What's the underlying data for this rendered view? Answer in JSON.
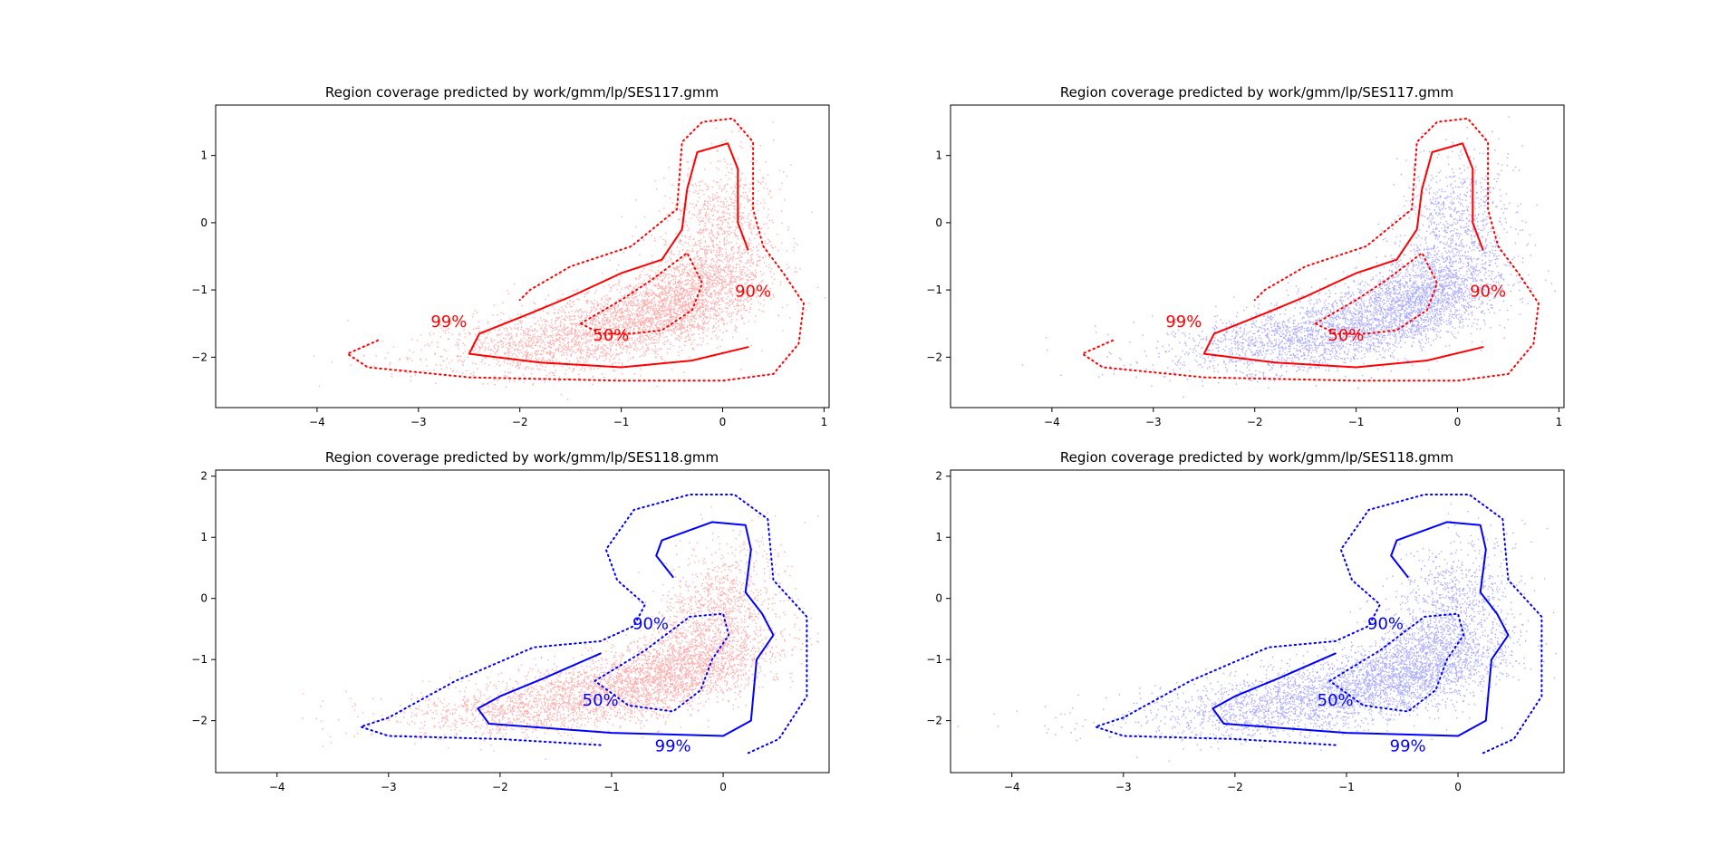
{
  "chart_data": [
    {
      "type": "scatter",
      "title": "Region coverage predicted by work/gmm/lp/SES117.gmm",
      "xlabel": "",
      "ylabel": "",
      "xlim": [
        -5.0,
        1.05
      ],
      "ylim": [
        -2.75,
        1.75
      ],
      "xticks": [
        -4,
        -3,
        -2,
        -1,
        0,
        1
      ],
      "yticks": [
        -2,
        -1,
        0,
        1
      ],
      "grid": false,
      "point_color": "#ff0000",
      "contour_color": "#ff0000",
      "contour_labels": [
        "99%",
        "90%",
        "50%"
      ],
      "contours": [
        {
          "level": "99%",
          "style": "dotted",
          "points": [
            [
              -3.4,
              -1.75
            ],
            [
              -3.7,
              -1.95
            ],
            [
              -3.5,
              -2.15
            ],
            [
              -2.5,
              -2.3
            ],
            [
              -1.0,
              -2.35
            ],
            [
              0.0,
              -2.35
            ],
            [
              0.5,
              -2.25
            ],
            [
              0.75,
              -1.8
            ],
            [
              0.8,
              -1.2
            ],
            [
              0.6,
              -0.75
            ],
            [
              0.4,
              -0.35
            ],
            [
              0.3,
              0.2
            ],
            [
              0.3,
              1.2
            ],
            [
              0.1,
              1.55
            ],
            [
              -0.2,
              1.5
            ],
            [
              -0.4,
              1.2
            ],
            [
              -0.45,
              0.2
            ],
            [
              -0.9,
              -0.35
            ],
            [
              -1.5,
              -0.65
            ],
            [
              -1.9,
              -1.0
            ],
            [
              -2.0,
              -1.15
            ]
          ]
        },
        {
          "level": "90%",
          "style": "solid",
          "points": [
            [
              0.25,
              -1.85
            ],
            [
              -0.3,
              -2.05
            ],
            [
              -1.0,
              -2.15
            ],
            [
              -1.8,
              -2.08
            ],
            [
              -2.5,
              -1.95
            ],
            [
              -2.4,
              -1.65
            ],
            [
              -1.9,
              -1.35
            ],
            [
              -1.5,
              -1.1
            ],
            [
              -1.0,
              -0.75
            ],
            [
              -0.6,
              -0.55
            ],
            [
              -0.4,
              -0.1
            ],
            [
              -0.35,
              0.5
            ],
            [
              -0.25,
              1.05
            ],
            [
              0.05,
              1.18
            ],
            [
              0.15,
              0.8
            ],
            [
              0.15,
              0.0
            ],
            [
              0.25,
              -0.4
            ]
          ]
        },
        {
          "level": "50%",
          "style": "dotted",
          "points": [
            [
              -1.4,
              -1.5
            ],
            [
              -1.0,
              -1.15
            ],
            [
              -0.7,
              -0.85
            ],
            [
              -0.35,
              -0.45
            ],
            [
              -0.2,
              -0.9
            ],
            [
              -0.3,
              -1.3
            ],
            [
              -0.6,
              -1.6
            ],
            [
              -0.9,
              -1.65
            ],
            [
              -1.2,
              -1.65
            ],
            [
              -1.4,
              -1.5
            ]
          ]
        }
      ],
      "label_positions": [
        [
          -2.7,
          -1.55
        ],
        [
          0.3,
          -1.1
        ],
        [
          -1.1,
          -1.75
        ]
      ]
    },
    {
      "type": "scatter",
      "title": "Region coverage predicted by work/gmm/lp/SES117.gmm",
      "xlabel": "",
      "ylabel": "",
      "xlim": [
        -5.0,
        1.05
      ],
      "ylim": [
        -2.75,
        1.75
      ],
      "xticks": [
        -4,
        -3,
        -2,
        -1,
        0,
        1
      ],
      "yticks": [
        -2,
        -1,
        0,
        1
      ],
      "grid": false,
      "point_color": "#0000ff",
      "contour_color": "#ff0000",
      "contour_labels": [
        "99%",
        "90%",
        "50%"
      ],
      "contours": [
        {
          "level": "99%",
          "style": "dotted",
          "points": [
            [
              -3.4,
              -1.75
            ],
            [
              -3.7,
              -1.95
            ],
            [
              -3.5,
              -2.15
            ],
            [
              -2.5,
              -2.3
            ],
            [
              -1.0,
              -2.35
            ],
            [
              0.0,
              -2.35
            ],
            [
              0.5,
              -2.25
            ],
            [
              0.75,
              -1.8
            ],
            [
              0.8,
              -1.2
            ],
            [
              0.6,
              -0.75
            ],
            [
              0.4,
              -0.35
            ],
            [
              0.3,
              0.2
            ],
            [
              0.3,
              1.2
            ],
            [
              0.1,
              1.55
            ],
            [
              -0.2,
              1.5
            ],
            [
              -0.4,
              1.2
            ],
            [
              -0.45,
              0.2
            ],
            [
              -0.9,
              -0.35
            ],
            [
              -1.5,
              -0.65
            ],
            [
              -1.9,
              -1.0
            ],
            [
              -2.0,
              -1.15
            ]
          ]
        },
        {
          "level": "90%",
          "style": "solid",
          "points": [
            [
              0.25,
              -1.85
            ],
            [
              -0.3,
              -2.05
            ],
            [
              -1.0,
              -2.15
            ],
            [
              -1.8,
              -2.08
            ],
            [
              -2.5,
              -1.95
            ],
            [
              -2.4,
              -1.65
            ],
            [
              -1.9,
              -1.35
            ],
            [
              -1.5,
              -1.1
            ],
            [
              -1.0,
              -0.75
            ],
            [
              -0.6,
              -0.55
            ],
            [
              -0.4,
              -0.1
            ],
            [
              -0.35,
              0.5
            ],
            [
              -0.25,
              1.05
            ],
            [
              0.05,
              1.18
            ],
            [
              0.15,
              0.8
            ],
            [
              0.15,
              0.0
            ],
            [
              0.25,
              -0.4
            ]
          ]
        },
        {
          "level": "50%",
          "style": "dotted",
          "points": [
            [
              -1.4,
              -1.5
            ],
            [
              -1.0,
              -1.15
            ],
            [
              -0.7,
              -0.85
            ],
            [
              -0.35,
              -0.45
            ],
            [
              -0.2,
              -0.9
            ],
            [
              -0.3,
              -1.3
            ],
            [
              -0.6,
              -1.6
            ],
            [
              -0.9,
              -1.65
            ],
            [
              -1.2,
              -1.65
            ],
            [
              -1.4,
              -1.5
            ]
          ]
        }
      ],
      "label_positions": [
        [
          -2.7,
          -1.55
        ],
        [
          0.3,
          -1.1
        ],
        [
          -1.1,
          -1.75
        ]
      ]
    },
    {
      "type": "scatter",
      "title": "Region coverage predicted by work/gmm/lp/SES118.gmm",
      "xlabel": "",
      "ylabel": "",
      "xlim": [
        -4.55,
        0.95
      ],
      "ylim": [
        -2.85,
        2.1
      ],
      "xticks": [
        -4,
        -3,
        -2,
        -1,
        0
      ],
      "yticks": [
        -2,
        -1,
        0,
        1,
        2
      ],
      "grid": false,
      "point_color": "#ff0000",
      "contour_color": "#0000ff",
      "contour_labels": [
        "90%",
        "50%",
        "99%"
      ],
      "contours": [
        {
          "level": "99%",
          "style": "dotted",
          "points": [
            [
              -1.1,
              -2.4
            ],
            [
              -2.0,
              -2.3
            ],
            [
              -3.0,
              -2.25
            ],
            [
              -3.25,
              -2.1
            ],
            [
              -3.0,
              -1.95
            ],
            [
              -2.4,
              -1.35
            ],
            [
              -1.7,
              -0.8
            ],
            [
              -1.1,
              -0.7
            ],
            [
              -0.8,
              -0.45
            ],
            [
              -0.7,
              -0.1
            ],
            [
              -0.95,
              0.3
            ],
            [
              -1.05,
              0.8
            ],
            [
              -0.8,
              1.45
            ],
            [
              -0.3,
              1.7
            ],
            [
              0.1,
              1.7
            ],
            [
              0.4,
              1.3
            ],
            [
              0.45,
              0.3
            ],
            [
              0.75,
              -0.3
            ],
            [
              0.75,
              -1.6
            ],
            [
              0.5,
              -2.3
            ],
            [
              0.2,
              -2.55
            ]
          ]
        },
        {
          "level": "90%",
          "style": "solid",
          "points": [
            [
              -1.1,
              -0.9
            ],
            [
              -1.6,
              -1.3
            ],
            [
              -2.0,
              -1.6
            ],
            [
              -2.2,
              -1.8
            ],
            [
              -2.1,
              -2.05
            ],
            [
              -1.0,
              -2.2
            ],
            [
              0.0,
              -2.25
            ],
            [
              0.25,
              -2.0
            ],
            [
              0.3,
              -1.0
            ],
            [
              0.45,
              -0.6
            ],
            [
              0.35,
              -0.25
            ],
            [
              0.2,
              0.1
            ],
            [
              0.25,
              0.8
            ],
            [
              0.2,
              1.2
            ],
            [
              -0.1,
              1.25
            ],
            [
              -0.55,
              0.95
            ],
            [
              -0.6,
              0.7
            ],
            [
              -0.45,
              0.35
            ]
          ]
        },
        {
          "level": "50%",
          "style": "dotted",
          "points": [
            [
              -1.15,
              -1.35
            ],
            [
              -0.7,
              -0.85
            ],
            [
              -0.3,
              -0.3
            ],
            [
              0.0,
              -0.25
            ],
            [
              0.05,
              -0.6
            ],
            [
              -0.1,
              -1.0
            ],
            [
              -0.2,
              -1.5
            ],
            [
              -0.45,
              -1.85
            ],
            [
              -0.85,
              -1.75
            ],
            [
              -1.15,
              -1.35
            ]
          ]
        }
      ],
      "label_positions": [
        [
          -0.65,
          -0.5
        ],
        [
          -1.1,
          -1.75
        ],
        [
          -0.45,
          -2.5
        ]
      ]
    },
    {
      "type": "scatter",
      "title": "Region coverage predicted by work/gmm/lp/SES118.gmm",
      "xlabel": "",
      "ylabel": "",
      "xlim": [
        -4.55,
        0.95
      ],
      "ylim": [
        -2.85,
        2.1
      ],
      "xticks": [
        -4,
        -3,
        -2,
        -1,
        0
      ],
      "yticks": [
        -2,
        -1,
        0,
        1,
        2
      ],
      "grid": false,
      "point_color": "#0000ff",
      "contour_color": "#0000ff",
      "contour_labels": [
        "90%",
        "50%",
        "99%"
      ],
      "contours": [
        {
          "level": "99%",
          "style": "dotted",
          "points": [
            [
              -1.1,
              -2.4
            ],
            [
              -2.0,
              -2.3
            ],
            [
              -3.0,
              -2.25
            ],
            [
              -3.25,
              -2.1
            ],
            [
              -3.0,
              -1.95
            ],
            [
              -2.4,
              -1.35
            ],
            [
              -1.7,
              -0.8
            ],
            [
              -1.1,
              -0.7
            ],
            [
              -0.8,
              -0.45
            ],
            [
              -0.7,
              -0.1
            ],
            [
              -0.95,
              0.3
            ],
            [
              -1.05,
              0.8
            ],
            [
              -0.8,
              1.45
            ],
            [
              -0.3,
              1.7
            ],
            [
              0.1,
              1.7
            ],
            [
              0.4,
              1.3
            ],
            [
              0.45,
              0.3
            ],
            [
              0.75,
              -0.3
            ],
            [
              0.75,
              -1.6
            ],
            [
              0.5,
              -2.3
            ],
            [
              0.2,
              -2.55
            ]
          ]
        },
        {
          "level": "90%",
          "style": "solid",
          "points": [
            [
              -1.1,
              -0.9
            ],
            [
              -1.6,
              -1.3
            ],
            [
              -2.0,
              -1.6
            ],
            [
              -2.2,
              -1.8
            ],
            [
              -2.1,
              -2.05
            ],
            [
              -1.0,
              -2.2
            ],
            [
              0.0,
              -2.25
            ],
            [
              0.25,
              -2.0
            ],
            [
              0.3,
              -1.0
            ],
            [
              0.45,
              -0.6
            ],
            [
              0.35,
              -0.25
            ],
            [
              0.2,
              0.1
            ],
            [
              0.25,
              0.8
            ],
            [
              0.2,
              1.2
            ],
            [
              -0.1,
              1.25
            ],
            [
              -0.55,
              0.95
            ],
            [
              -0.6,
              0.7
            ],
            [
              -0.45,
              0.35
            ]
          ]
        },
        {
          "level": "50%",
          "style": "dotted",
          "points": [
            [
              -1.15,
              -1.35
            ],
            [
              -0.7,
              -0.85
            ],
            [
              -0.3,
              -0.3
            ],
            [
              0.0,
              -0.25
            ],
            [
              0.05,
              -0.6
            ],
            [
              -0.1,
              -1.0
            ],
            [
              -0.2,
              -1.5
            ],
            [
              -0.45,
              -1.85
            ],
            [
              -0.85,
              -1.75
            ],
            [
              -1.15,
              -1.35
            ]
          ]
        }
      ],
      "label_positions": [
        [
          -0.65,
          -0.5
        ],
        [
          -1.1,
          -1.75
        ],
        [
          -0.45,
          -2.5
        ]
      ]
    }
  ]
}
